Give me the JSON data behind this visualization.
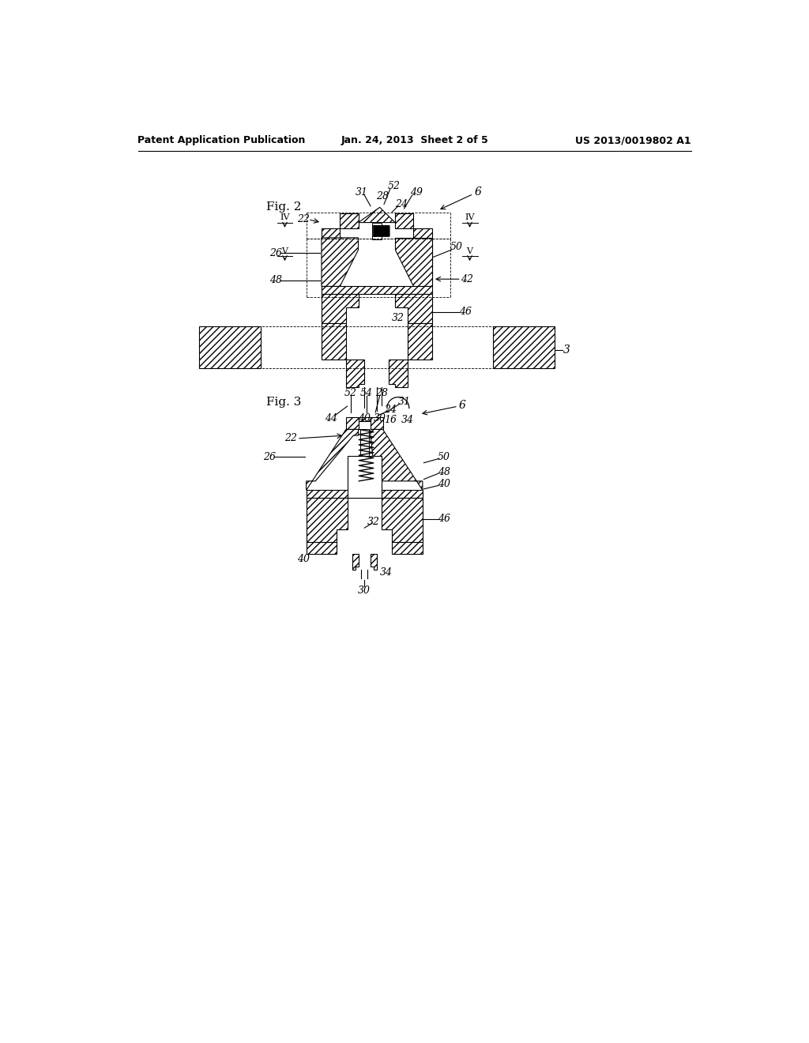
{
  "header_left": "Patent Application Publication",
  "header_center": "Jan. 24, 2013  Sheet 2 of 5",
  "header_right": "US 2013/0019802 A1",
  "bg": "#ffffff"
}
